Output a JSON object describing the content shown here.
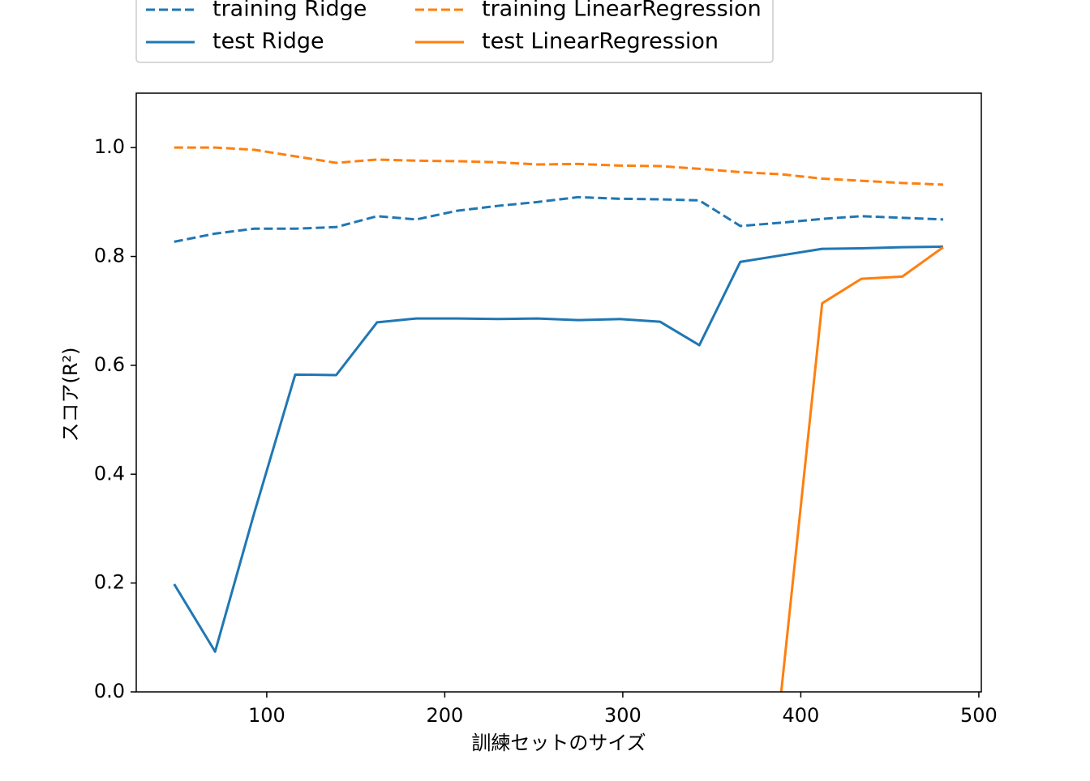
{
  "chart_data": {
    "type": "line",
    "x_label": "訓練セットのサイズ",
    "y_label": "スコア(R²)",
    "x": [
      48,
      71,
      93,
      116,
      139,
      162,
      184,
      207,
      230,
      252,
      275,
      298,
      321,
      343,
      366,
      389,
      412,
      434,
      457,
      480
    ],
    "series": [
      {
        "name": "training Ridge",
        "color": "#1f77b4",
        "dashed": true,
        "values": [
          0.827,
          0.842,
          0.851,
          0.851,
          0.854,
          0.874,
          0.868,
          0.884,
          0.893,
          0.9,
          0.909,
          0.906,
          0.905,
          0.903,
          0.856,
          0.862,
          0.869,
          0.874,
          0.871,
          0.868
        ]
      },
      {
        "name": "test Ridge",
        "color": "#1f77b4",
        "dashed": false,
        "values": [
          0.198,
          0.074,
          0.329,
          0.583,
          0.582,
          0.679,
          0.686,
          0.686,
          0.685,
          0.686,
          0.683,
          0.685,
          0.68,
          0.637,
          0.79,
          0.802,
          0.814,
          0.815,
          0.817,
          0.818
        ]
      },
      {
        "name": "training LinearRegression",
        "color": "#ff7f0e",
        "dashed": true,
        "values": [
          1.0,
          1.0,
          0.996,
          0.984,
          0.972,
          0.978,
          0.976,
          0.975,
          0.973,
          0.969,
          0.97,
          0.967,
          0.966,
          0.961,
          0.955,
          0.951,
          0.943,
          0.939,
          0.935,
          0.932
        ]
      },
      {
        "name": "test LinearRegression",
        "color": "#ff7f0e",
        "dashed": false,
        "values": [
          null,
          null,
          null,
          null,
          null,
          null,
          null,
          null,
          null,
          null,
          null,
          null,
          null,
          null,
          null,
          0.0,
          0.714,
          0.759,
          0.763,
          0.817
        ]
      }
    ],
    "xlim": [
      26.7,
      501.4
    ],
    "xticks": [
      100,
      200,
      300,
      400,
      500
    ],
    "ylim": [
      0,
      1.1
    ],
    "yticks": [
      {
        "value": 0,
        "label": "0.0"
      },
      0.2,
      0.4,
      0.6,
      0.8,
      {
        "value": 1,
        "label": "1.0"
      }
    ],
    "legend": "top"
  }
}
